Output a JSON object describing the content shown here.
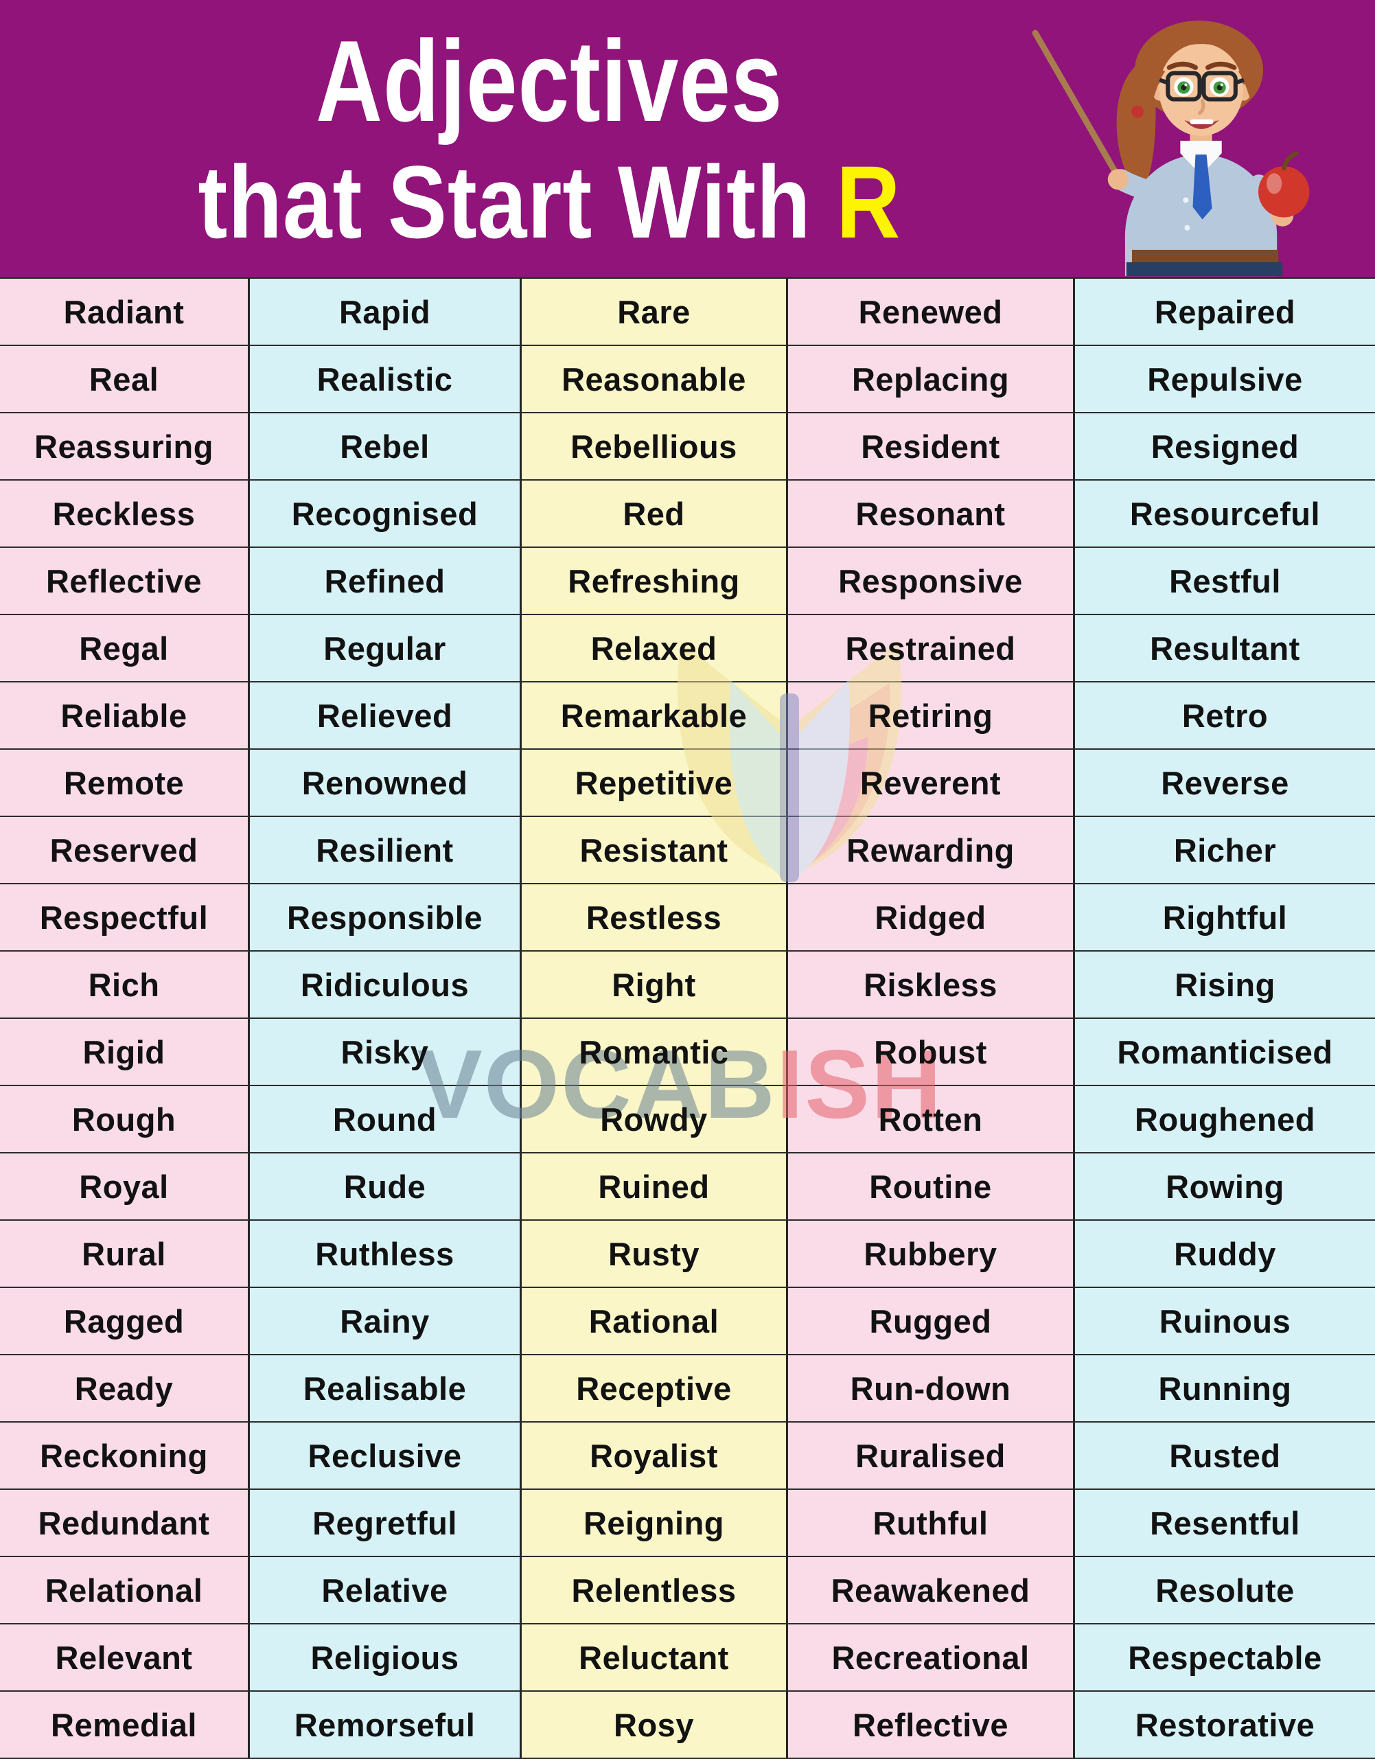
{
  "header": {
    "title_line1": "Adjectives",
    "title_line2_prefix": "that Start With ",
    "title_line2_highlight": "R",
    "background_color": "#90147A",
    "highlight_color": "#FCF400",
    "illustration": "teacher-with-pointer-and-apple"
  },
  "watermark": {
    "icon": "open-book-icon",
    "text_primary": "VOCAB",
    "text_secondary": "ISH"
  },
  "table": {
    "column_colors": [
      "#FADCE8",
      "#D6F2F6",
      "#FAF6C8",
      "#FADCE8",
      "#D6F2F6"
    ],
    "rows": [
      [
        "Radiant",
        "Rapid",
        "Rare",
        "Renewed",
        "Repaired"
      ],
      [
        "Real",
        "Realistic",
        "Reasonable",
        "Replacing",
        "Repulsive"
      ],
      [
        "Reassuring",
        "Rebel",
        "Rebellious",
        "Resident",
        "Resigned"
      ],
      [
        "Reckless",
        "Recognised",
        "Red",
        "Resonant",
        "Resourceful"
      ],
      [
        "Reflective",
        "Refined",
        "Refreshing",
        "Responsive",
        "Restful"
      ],
      [
        "Regal",
        "Regular",
        "Relaxed",
        "Restrained",
        "Resultant"
      ],
      [
        "Reliable",
        "Relieved",
        "Remarkable",
        "Retiring",
        "Retro"
      ],
      [
        "Remote",
        "Renowned",
        "Repetitive",
        "Reverent",
        "Reverse"
      ],
      [
        "Reserved",
        "Resilient",
        "Resistant",
        "Rewarding",
        "Richer"
      ],
      [
        "Respectful",
        "Responsible",
        "Restless",
        "Ridged",
        "Rightful"
      ],
      [
        "Rich",
        "Ridiculous",
        "Right",
        "Riskless",
        "Rising"
      ],
      [
        "Rigid",
        "Risky",
        "Romantic",
        "Robust",
        "Romanticised"
      ],
      [
        "Rough",
        "Round",
        "Rowdy",
        "Rotten",
        "Roughened"
      ],
      [
        "Royal",
        "Rude",
        "Ruined",
        "Routine",
        "Rowing"
      ],
      [
        "Rural",
        "Ruthless",
        "Rusty",
        "Rubbery",
        "Ruddy"
      ],
      [
        "Ragged",
        "Rainy",
        "Rational",
        "Rugged",
        "Ruinous"
      ],
      [
        "Ready",
        "Realisable",
        "Receptive",
        "Run-down",
        "Running"
      ],
      [
        "Reckoning",
        "Reclusive",
        "Royalist",
        "Ruralised",
        "Rusted"
      ],
      [
        "Redundant",
        "Regretful",
        "Reigning",
        "Ruthful",
        "Resentful"
      ],
      [
        "Relational",
        "Relative",
        "Relentless",
        "Reawakened",
        "Resolute"
      ],
      [
        "Relevant",
        "Religious",
        "Reluctant",
        "Recreational",
        "Respectable"
      ],
      [
        "Remedial",
        "Remorseful",
        "Rosy",
        "Reflective",
        "Restorative"
      ]
    ]
  }
}
